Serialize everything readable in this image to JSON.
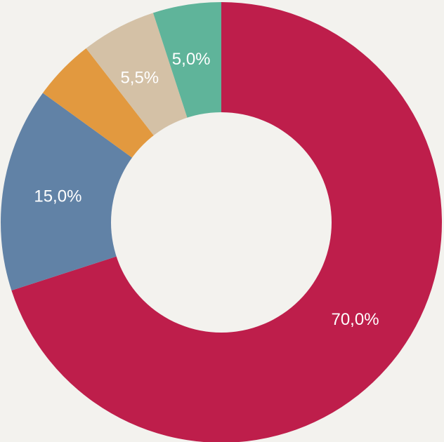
{
  "chart_data": {
    "type": "pie",
    "variant": "donut",
    "title": "",
    "legend": "none",
    "background": "#f3f2ee",
    "slices": [
      {
        "value": 70.0,
        "label": "70,0%",
        "color": "#be1e4b"
      },
      {
        "value": 15.0,
        "label": "15,0%",
        "color": "#6182a6"
      },
      {
        "value": 4.5,
        "label": "",
        "color": "#e2993f"
      },
      {
        "value": 5.5,
        "label": "5,5%",
        "color": "#d4c1a6"
      },
      {
        "value": 5.0,
        "label": "5,0%",
        "color": "#5fb49a"
      }
    ]
  }
}
